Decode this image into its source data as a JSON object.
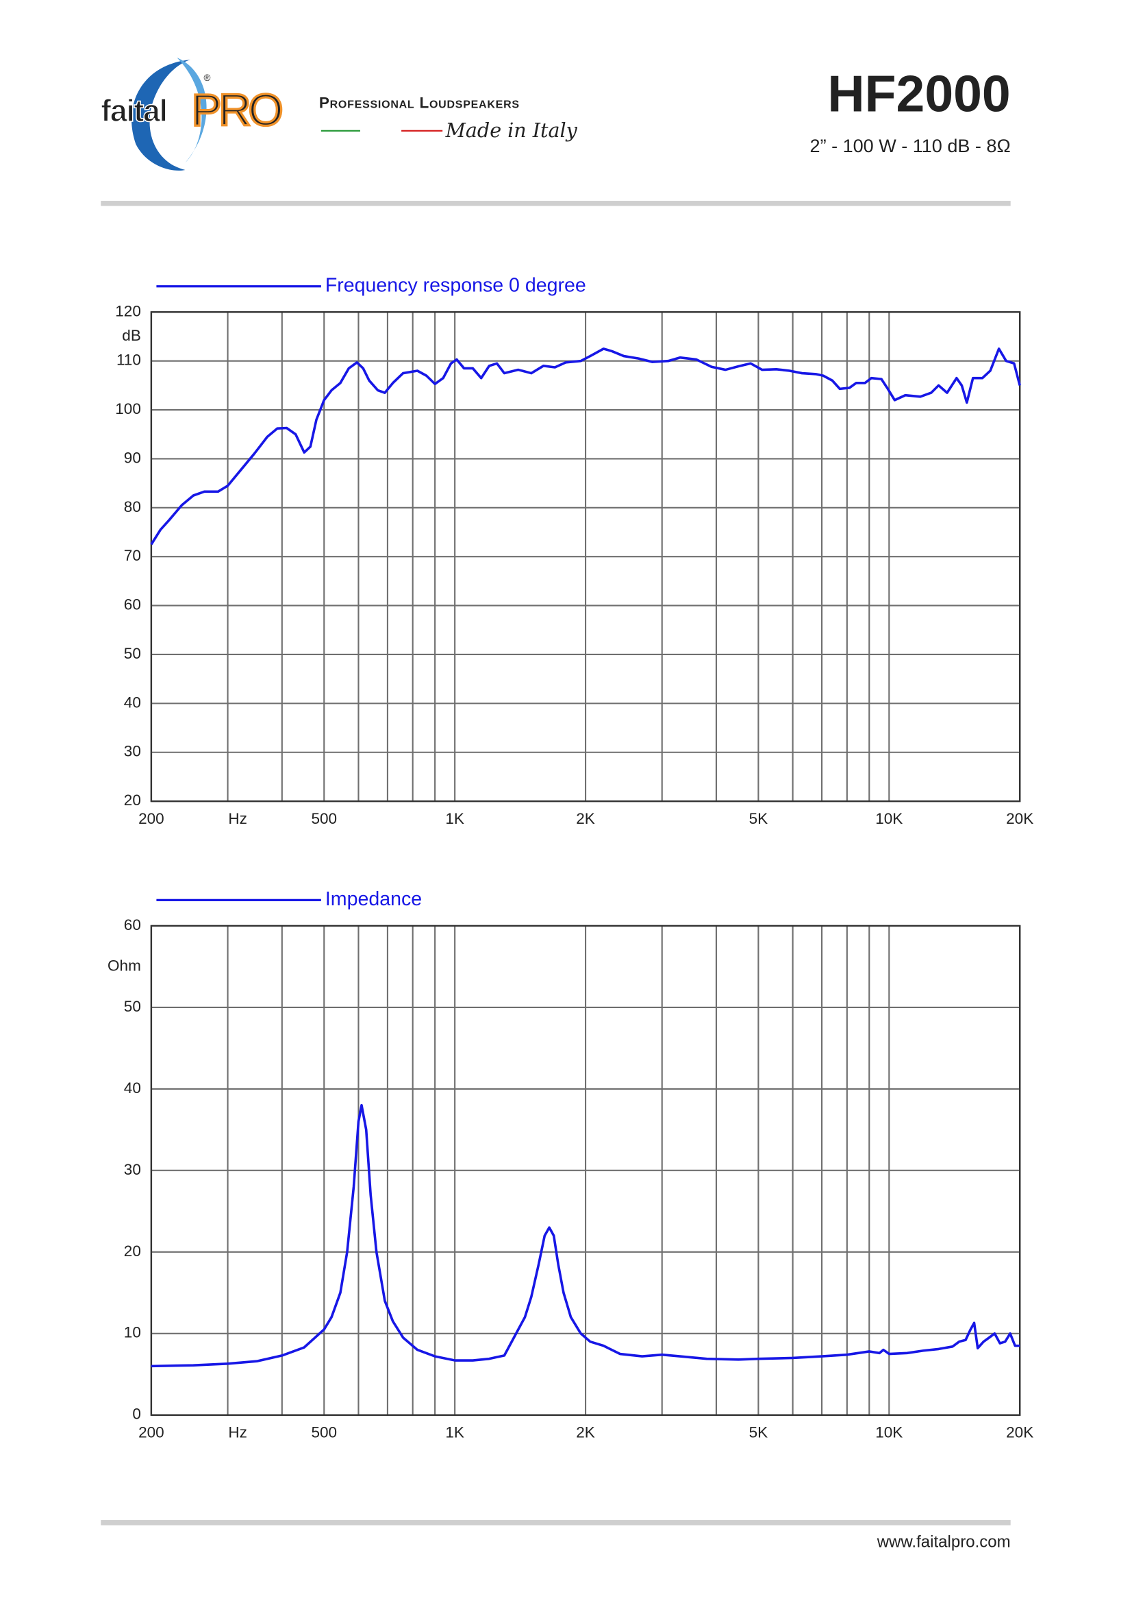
{
  "header": {
    "brand": "faital",
    "brand_pro": "PRO",
    "registered": "®",
    "tagline": "Professional Loudspeakers",
    "made_in": "Made in Italy",
    "model": "HF2000",
    "specs": "2” - 100 W - 110 dB - 8Ω"
  },
  "footer": {
    "url": "www.faitalpro.com"
  },
  "chart_data": [
    {
      "type": "line",
      "xscale": "log",
      "ylabel": "dB",
      "xlabel": "Hz",
      "grid": true,
      "xlim": [
        200,
        20000
      ],
      "ylim": [
        20,
        120
      ],
      "xticks": [
        200,
        500,
        {
          "value": 1000,
          "label": "1K"
        },
        {
          "value": 2000,
          "label": "2K"
        },
        {
          "value": 5000,
          "label": "5K"
        },
        {
          "value": 10000,
          "label": "10K"
        },
        {
          "value": 20000,
          "label": "20K"
        }
      ],
      "xminor": [
        300,
        400,
        600,
        700,
        800,
        900,
        3000,
        4000,
        6000,
        7000,
        8000,
        9000
      ],
      "yticks": [
        20,
        30,
        40,
        50,
        60,
        70,
        80,
        90,
        100,
        110,
        120
      ],
      "x": [
        200,
        210,
        220,
        235,
        250,
        265,
        285,
        300,
        320,
        345,
        370,
        390,
        410,
        430,
        450,
        465,
        480,
        500,
        520,
        545,
        570,
        595,
        615,
        635,
        665,
        690,
        720,
        760,
        820,
        860,
        900,
        940,
        980,
        1010,
        1050,
        1100,
        1150,
        1200,
        1250,
        1300,
        1400,
        1500,
        1600,
        1700,
        1800,
        1950,
        2050,
        2200,
        2300,
        2450,
        2650,
        2850,
        3100,
        3300,
        3600,
        3900,
        4200,
        4500,
        4800,
        5100,
        5500,
        5900,
        6300,
        6800,
        7050,
        7400,
        7700,
        8100,
        8400,
        8800,
        9100,
        9600,
        9900,
        10300,
        10900,
        11800,
        12500,
        13000,
        13600,
        14300,
        14700,
        15100,
        15600,
        16400,
        17100,
        17900,
        18600,
        19400,
        20000
      ],
      "series": [
        {
          "name": "Frequency response 0 degree",
          "color": "#1717e6",
          "values": [
            72.5,
            75.5,
            77.5,
            80.5,
            82.5,
            83.3,
            83.3,
            84.5,
            87.5,
            91,
            94.5,
            96.2,
            96.3,
            95,
            91.3,
            92.5,
            98,
            102,
            104,
            105.5,
            108.5,
            109.7,
            108.5,
            106,
            104,
            103.5,
            105.5,
            107.5,
            108,
            107,
            105.3,
            106.5,
            109.5,
            110.3,
            108.5,
            108.5,
            106.5,
            109,
            109.5,
            107.5,
            108.2,
            107.5,
            109,
            108.7,
            109.7,
            110,
            111,
            112.5,
            112,
            111,
            110.5,
            109.8,
            110,
            110.7,
            110.3,
            108.8,
            108.2,
            108.9,
            109.5,
            108.2,
            108.3,
            108,
            107.5,
            107.3,
            107,
            106,
            104.3,
            104.5,
            105.5,
            105.5,
            106.5,
            106.3,
            104.5,
            102,
            103,
            102.7,
            103.5,
            105,
            103.5,
            106.5,
            105,
            101.5,
            106.5,
            106.5,
            108,
            112.5,
            110,
            109.5,
            105
          ]
        }
      ]
    },
    {
      "type": "line",
      "xscale": "log",
      "ylabel": "Ohm",
      "xlabel": "Hz",
      "grid": true,
      "xlim": [
        200,
        20000
      ],
      "ylim": [
        0,
        60
      ],
      "xticks": [
        200,
        500,
        {
          "value": 1000,
          "label": "1K"
        },
        {
          "value": 2000,
          "label": "2K"
        },
        {
          "value": 5000,
          "label": "5K"
        },
        {
          "value": 10000,
          "label": "10K"
        },
        {
          "value": 20000,
          "label": "20K"
        }
      ],
      "xminor": [
        300,
        400,
        600,
        700,
        800,
        900,
        3000,
        4000,
        6000,
        7000,
        8000,
        9000
      ],
      "yticks": [
        0,
        10,
        20,
        30,
        40,
        50,
        60
      ],
      "x": [
        200,
        250,
        300,
        350,
        400,
        450,
        500,
        520,
        545,
        565,
        585,
        600,
        610,
        625,
        640,
        660,
        690,
        720,
        760,
        820,
        900,
        1000,
        1100,
        1200,
        1300,
        1400,
        1450,
        1500,
        1560,
        1610,
        1650,
        1690,
        1730,
        1780,
        1850,
        1950,
        2050,
        2200,
        2400,
        2700,
        3000,
        3300,
        3800,
        4500,
        5000,
        6000,
        7000,
        8000,
        9000,
        9500,
        9700,
        10000,
        11000,
        12000,
        13000,
        14000,
        14500,
        15000,
        15400,
        15700,
        16000,
        16500,
        17000,
        17500,
        18000,
        18500,
        19000,
        19500,
        20000
      ],
      "series": [
        {
          "name": "Impedance",
          "color": "#1717e6",
          "values": [
            6,
            6.1,
            6.3,
            6.6,
            7.3,
            8.3,
            10.5,
            12,
            15,
            20,
            28,
            36,
            38,
            35,
            27,
            20,
            14,
            11.5,
            9.5,
            8,
            7.2,
            6.7,
            6.7,
            6.9,
            7.3,
            10.5,
            12,
            14.5,
            18.5,
            22,
            23,
            22,
            18.5,
            15,
            12,
            10,
            9,
            8.5,
            7.5,
            7.2,
            7.4,
            7.2,
            6.9,
            6.8,
            6.9,
            7,
            7.2,
            7.4,
            7.8,
            7.6,
            8,
            7.5,
            7.6,
            7.9,
            8.1,
            8.4,
            9,
            9.2,
            10.5,
            11.3,
            8.2,
            9,
            9.5,
            10,
            8.8,
            9,
            10,
            8.5,
            8.5
          ]
        }
      ]
    }
  ]
}
